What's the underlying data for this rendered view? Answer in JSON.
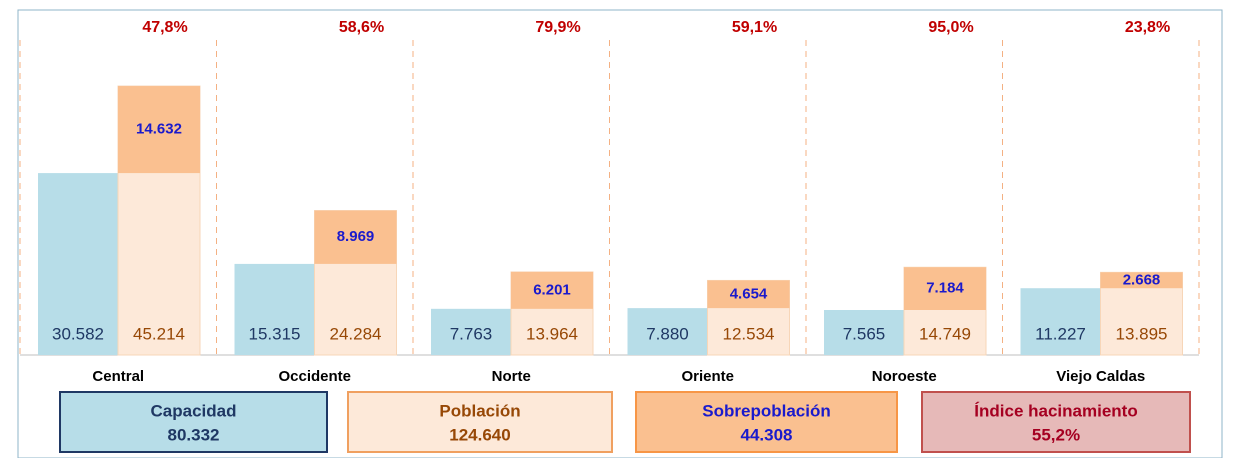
{
  "chart_data": {
    "type": "bar",
    "categories": [
      "Central",
      "Occidente",
      "Norte",
      "Oriente",
      "Noroeste",
      "Viejo Caldas"
    ],
    "ylim": [
      0,
      58000
    ],
    "series": [
      {
        "name": "Capacidad",
        "color": "#b7dde8",
        "values": [
          30582,
          15315,
          7763,
          7880,
          7565,
          11227
        ],
        "value_labels": [
          "30.582",
          "15.315",
          "7.763",
          "7.880",
          "7.565",
          "11.227"
        ],
        "total": 80332,
        "total_label": "80.332"
      },
      {
        "name": "Población",
        "color": "#fde9d9",
        "values": [
          45214,
          24284,
          13964,
          12534,
          14749,
          13895
        ],
        "value_labels": [
          "45.214",
          "24.284",
          "13.964",
          "12.534",
          "14.749",
          "13.895"
        ],
        "total": 124640,
        "total_label": "124.640"
      },
      {
        "name": "Sobrepoblación",
        "color": "#fac090",
        "values": [
          14632,
          8969,
          6201,
          4654,
          7184,
          2668
        ],
        "value_labels": [
          "14.632",
          "8.969",
          "6.201",
          "4.654",
          "7.184",
          "2.668"
        ],
        "total": 44308,
        "total_label": "44.308"
      },
      {
        "name": "Índice hacinamiento",
        "color": "#e6b9b8",
        "values": [
          47.8,
          58.6,
          79.9,
          59.1,
          95.0,
          23.8
        ],
        "value_labels": [
          "47,8%",
          "58,6%",
          "79,9%",
          "59,1%",
          "95,0%",
          "23,8%"
        ],
        "total": 55.2,
        "total_label": "55,2%"
      }
    ]
  }
}
